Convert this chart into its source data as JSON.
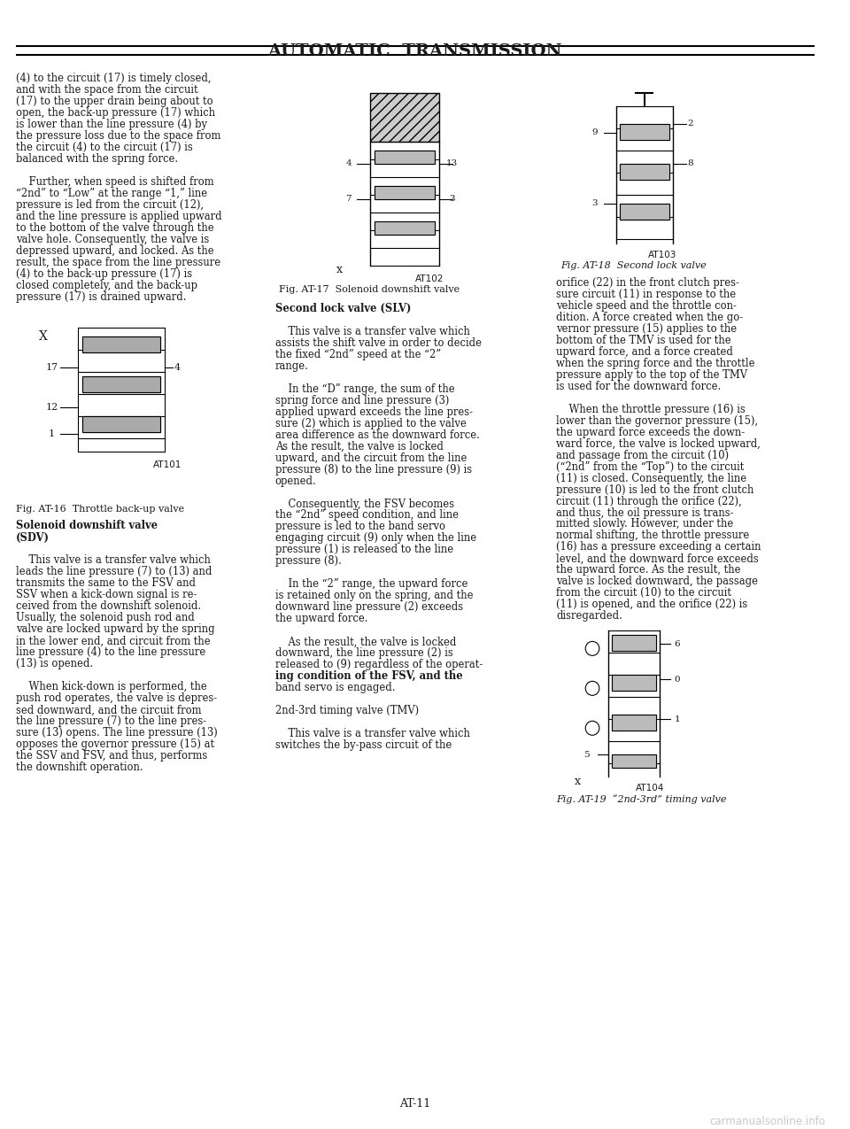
{
  "title": "AUTOMATIC  TRANSMISSION",
  "page_number": "AT-11",
  "bg_color": "#ffffff",
  "text_color": "#1a1a1a",
  "title_fontsize": 14,
  "body_fontsize": 8.5,
  "watermark": "carmanualsonline.info",
  "left_col_text": [
    "(4) to the circuit (17) is timely closed,",
    "and with the space from the circuit",
    "(17) to the upper drain being about to",
    "open, the back-up pressure (17) which",
    "is lower than the line pressure (4) by",
    "the pressure loss due to the space from",
    "the circuit (4) to the circuit (17) is",
    "balanced with the spring force.",
    "",
    "    Further, when speed is shifted from",
    "“2nd” to “Low” at the range “1,” line",
    "pressure is led from the circuit (12),",
    "and the line pressure is applied upward",
    "to the bottom of the valve through the",
    "valve hole. Consequently, the valve is",
    "depressed upward, and locked. As the",
    "result, the space from the line pressure",
    "(4) to the back-up pressure (17) is",
    "closed completely, and the back-up",
    "pressure (17) is drained upward."
  ],
  "fig_at16_caption": "Fig. AT-16  Throttle back-up valve",
  "fig_at16_label": "AT101",
  "left_col2_text": [
    "Solenoid downshift valve",
    "(SDV)",
    "",
    "    This valve is a transfer valve which",
    "leads the line pressure (7) to (13) and",
    "transmits the same to the FSV and",
    "SSV when a kick-down signal is re-",
    "ceived from the downshift solenoid.",
    "Usually, the solenoid push rod and",
    "valve are locked upward by the spring",
    "in the lower end, and circuit from the",
    "line pressure (4) to the line pressure",
    "(13) is opened.",
    "",
    "    When kick-down is performed, the",
    "push rod operates, the valve is depres-",
    "sed downward, and the circuit from",
    "the line pressure (7) to the line pres-",
    "sure (13) opens. The line pressure (13)",
    "opposes the governor pressure (15) at",
    "the SSV and FSV, and thus, performs",
    "the downshift operation."
  ],
  "mid_col_text": [
    "Second lock valve (SLV)",
    "",
    "    This valve is a transfer valve which",
    "assists the shift valve in order to decide",
    "the fixed “2nd” speed at the “2”",
    "range.",
    "",
    "    In the “D” range, the sum of the",
    "spring force and line pressure (3)",
    "applied upward exceeds the line pres-",
    "sure (2) which is applied to the valve",
    "area difference as the downward force.",
    "As the result, the valve is locked",
    "upward, and the circuit from the line",
    "pressure (8) to the line pressure (9) is",
    "opened.",
    "",
    "    Consequently, the FSV becomes",
    "the “2nd” speed condition, and line",
    "pressure is led to the band servo",
    "engaging circuit (9) only when the line",
    "pressure (1) is released to the line",
    "pressure (8).",
    "",
    "    In the “2” range, the upward force",
    "is retained only on the spring, and the",
    "downward line pressure (2) exceeds",
    "the upward force.",
    "",
    "    As the result, the valve is locked",
    "downward, the line pressure (2) is",
    "released to (9) regardless of the operat-",
    "ing condition of the FSV, and the",
    "band servo is engaged.",
    "",
    "2nd-3rd timing valve (TMV)",
    "",
    "    This valve is a transfer valve which",
    "switches the by-pass circuit of the"
  ],
  "fig_at17_caption": "Fig. AT-17  Solenoid downshift valve",
  "fig_at17_label": "AT102",
  "right_col_text": [
    "orifice (22) in the front clutch pres-",
    "sure circuit (11) in response to the",
    "vehicle speed and the throttle con-",
    "dition. A force created when the go-",
    "vernor pressure (15) applies to the",
    "bottom of the TMV is used for the",
    "upward force, and a force created",
    "when the spring force and the throttle",
    "pressure apply to the top of the TMV",
    "is used for the downward force.",
    "",
    "    When the throttle pressure (16) is",
    "lower than the governor pressure (15),",
    "the upward force exceeds the down-",
    "ward force, the valve is locked upward,",
    "and passage from the circuit (10)",
    "(“2nd” from the “Top”) to the circuit",
    "(11) is closed. Consequently, the line",
    "pressure (10) is led to the front clutch",
    "circuit (11) through the orifice (22),",
    "and thus, the oil pressure is trans-",
    "mitted slowly. However, under the",
    "normal shifting, the throttle pressure",
    "(16) has a pressure exceeding a certain",
    "level, and the downward force exceeds",
    "the upward force. As the result, the",
    "valve is locked downward, the passage",
    "from the circuit (10) to the circuit",
    "(11) is opened, and the orifice (22) is",
    "disregarded."
  ],
  "fig_at18_caption": "Fig. AT-18  Second lock valve",
  "fig_at18_label": "AT103",
  "fig_at19_caption": "Fig. AT-19  “2nd-3rd” timing valve",
  "fig_at19_label": "AT104"
}
